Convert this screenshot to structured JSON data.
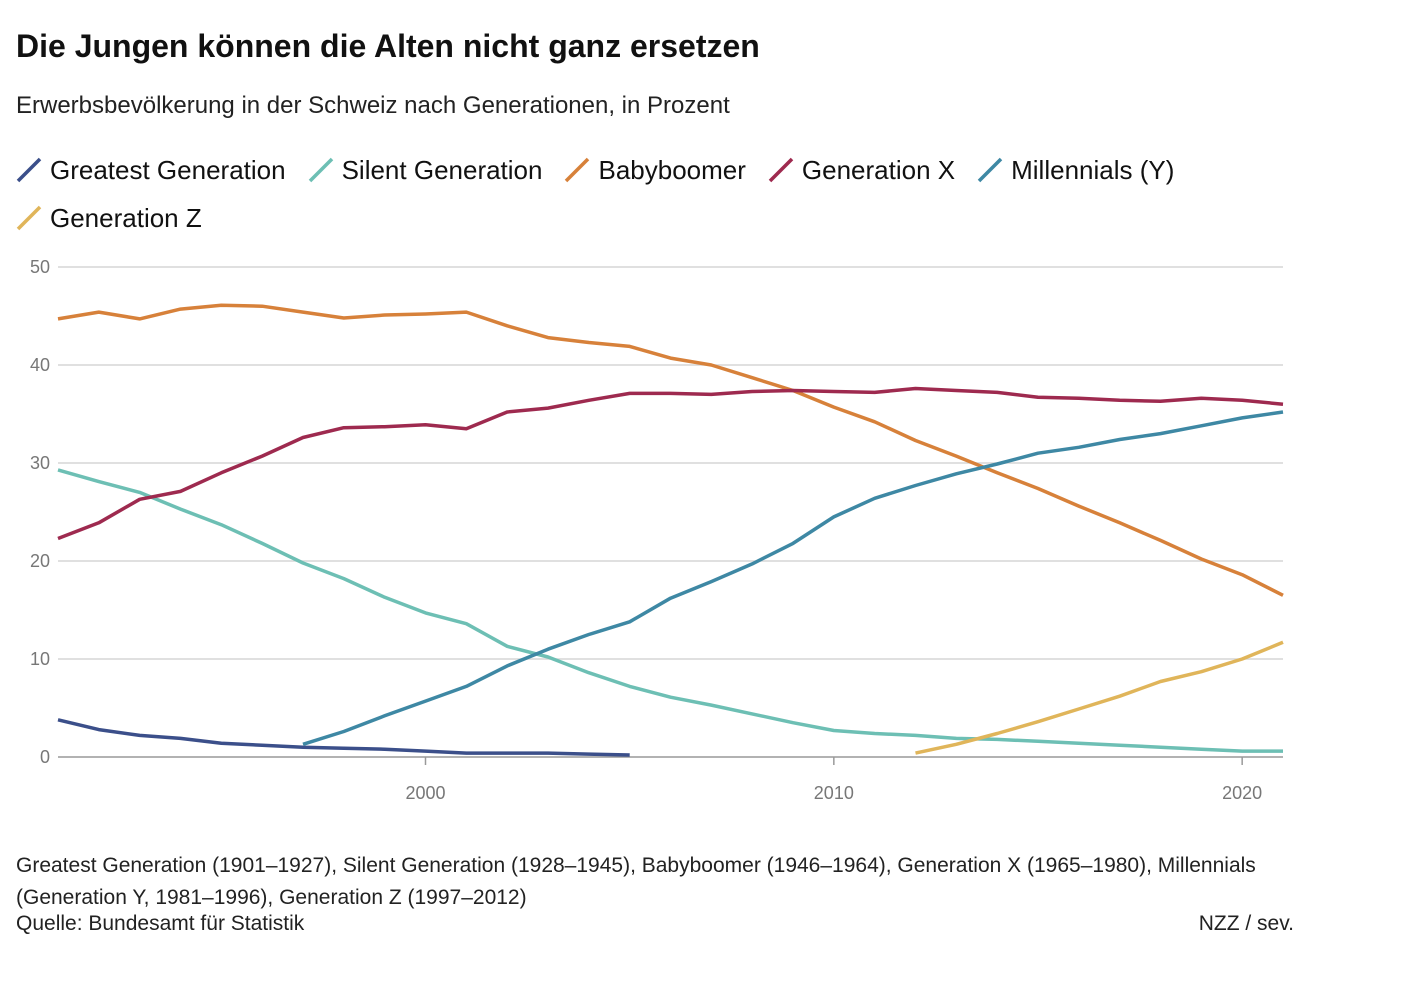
{
  "chart_data": {
    "type": "line",
    "title": "Die Jungen können die Alten nicht ganz ersetzen",
    "subtitle": "Erwerbsbevölkerung in der Schweiz nach Generationen, in Prozent",
    "x": [
      1991,
      1992,
      1993,
      1994,
      1995,
      1996,
      1997,
      1998,
      1999,
      2000,
      2001,
      2002,
      2003,
      2004,
      2005,
      2006,
      2007,
      2008,
      2009,
      2010,
      2011,
      2012,
      2013,
      2014,
      2015,
      2016,
      2017,
      2018,
      2019,
      2020,
      2021
    ],
    "series": [
      {
        "name": "Greatest Generation",
        "color": "#3b4f8a",
        "values": [
          3.8,
          2.8,
          2.2,
          1.9,
          1.4,
          1.2,
          1.0,
          0.9,
          0.8,
          0.6,
          0.4,
          0.4,
          0.4,
          0.3,
          0.2,
          null,
          null,
          null,
          null,
          null,
          null,
          null,
          null,
          null,
          null,
          null,
          null,
          null,
          null,
          null,
          null
        ]
      },
      {
        "name": "Silent Generation",
        "color": "#6dbfb4",
        "values": [
          29.3,
          28.1,
          27.0,
          25.3,
          23.7,
          21.8,
          19.8,
          18.2,
          16.3,
          14.7,
          13.6,
          11.3,
          10.2,
          8.6,
          7.2,
          6.1,
          5.3,
          4.4,
          3.5,
          2.7,
          2.4,
          2.2,
          1.9,
          1.8,
          1.6,
          1.4,
          1.2,
          1.0,
          0.8,
          0.6,
          0.6
        ]
      },
      {
        "name": "Babyboomer",
        "color": "#d7813a",
        "values": [
          44.7,
          45.4,
          44.7,
          45.7,
          46.1,
          46.0,
          45.4,
          44.8,
          45.1,
          45.2,
          45.4,
          44.0,
          42.8,
          42.3,
          41.9,
          40.7,
          40.0,
          38.7,
          37.4,
          35.7,
          34.2,
          32.3,
          30.7,
          29.0,
          27.4,
          25.6,
          23.9,
          22.1,
          20.2,
          18.6,
          16.5
        ]
      },
      {
        "name": "Generation X",
        "color": "#9e2a4f",
        "values": [
          22.3,
          23.9,
          26.3,
          27.1,
          29.0,
          30.7,
          32.6,
          33.6,
          33.7,
          33.9,
          33.5,
          35.2,
          35.6,
          36.4,
          37.1,
          37.1,
          37.0,
          37.3,
          37.4,
          37.3,
          37.2,
          37.6,
          37.4,
          37.2,
          36.7,
          36.6,
          36.4,
          36.3,
          36.6,
          36.4,
          36.0
        ]
      },
      {
        "name": "Millennials (Y)",
        "color": "#3e88a4",
        "values": [
          null,
          null,
          null,
          null,
          null,
          null,
          1.3,
          2.6,
          4.2,
          5.7,
          7.2,
          9.3,
          11.0,
          12.5,
          13.8,
          16.2,
          17.9,
          19.7,
          21.8,
          24.5,
          26.4,
          27.7,
          28.9,
          29.9,
          31.0,
          31.6,
          32.4,
          33.0,
          33.8,
          34.6,
          35.2
        ]
      },
      {
        "name": "Generation Z",
        "color": "#e0b55a",
        "values": [
          null,
          null,
          null,
          null,
          null,
          null,
          null,
          null,
          null,
          null,
          null,
          null,
          null,
          null,
          null,
          null,
          null,
          null,
          null,
          null,
          null,
          0.4,
          1.3,
          2.4,
          3.6,
          4.9,
          6.2,
          7.7,
          8.7,
          10.0,
          11.7
        ]
      }
    ],
    "xlim": [
      1991,
      2021
    ],
    "xticks": [
      2000,
      2010,
      2020
    ],
    "ylim": [
      0,
      50
    ],
    "yticks": [
      0,
      10,
      20,
      30,
      40,
      50
    ],
    "grid": true,
    "note": "Greatest Generation (1901–1927), Silent Generation (1928–1945), Babyboomer (1946–1964), Generation X (1965–1980), Millennials (Generation Y, 1981–1996), Generation Z (1997–2012)",
    "source": "Quelle: Bundesamt für Statistik",
    "credit": "NZZ / sev."
  }
}
